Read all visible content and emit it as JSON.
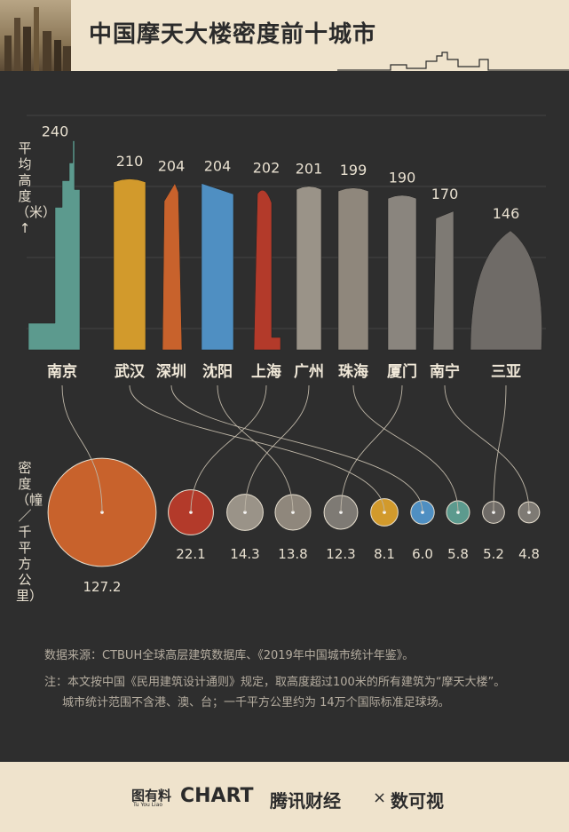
{
  "title": "中国摩天大楼密度前十城市",
  "chart_data": {
    "type": "bar",
    "categories": [
      "南京",
      "武汉",
      "深圳",
      "沈阳",
      "上海",
      "广州",
      "珠海",
      "厦门",
      "南宁",
      "三亚"
    ],
    "series": [
      {
        "name": "平均高度（米）↑",
        "values": [
          240,
          210,
          204,
          204,
          202,
          201,
          199,
          190,
          170,
          146
        ]
      },
      {
        "name": "密度（幢／千平方公里）",
        "values": [
          127.2,
          22.1,
          14.3,
          13.8,
          12.3,
          8.1,
          6.0,
          5.8,
          5.2,
          4.8
        ],
        "value_labels": [
          "127.2",
          "22.1",
          "14.3",
          "13.8",
          "12.3",
          "8.1",
          "6.0",
          "5.8",
          "5.2",
          "4.8"
        ],
        "density_order_cities": [
          "南京",
          "上海",
          "广州",
          "沈阳",
          "厦门",
          "武汉",
          "深圳",
          "珠海",
          "三亚",
          "南宁"
        ]
      }
    ],
    "bar_colors": [
      "#5c9a8e",
      "#d29a2c",
      "#c8622c",
      "#4f8fc2",
      "#b33a2a",
      "#9a9388",
      "#8f877c",
      "#8a857e",
      "#7e7a74",
      "#6f6b67"
    ],
    "density_colors": [
      "#c8622c",
      "#b33a2a",
      "#9a9388",
      "#8f877c",
      "#7e7a74",
      "#d29a2c",
      "#4f8fc2",
      "#5c9a8e",
      "#6f6b67",
      "#7e7a74"
    ],
    "ylabel_height": "平均高度（米）↑",
    "ylabel_density": "密度（幢／千平方公里）"
  },
  "notes": {
    "source": "数据来源：CTBUH全球高层建筑数据库、《2019年中国城市统计年鉴》。",
    "note1": "注：本文按中国《民用建筑设计通则》规定，取高度超过100米的所有建筑为“摩天大楼”。",
    "note2": "城市统计范围不含港、澳、台；一千平方公里约为 14万个国际标准足球场。"
  },
  "footer": {
    "brand1": "图有料",
    "brand1_sub": "Tu You Liao",
    "brand2": "CHART",
    "brand3": "腾讯财经",
    "cross": "×",
    "brand4": "数可视"
  }
}
